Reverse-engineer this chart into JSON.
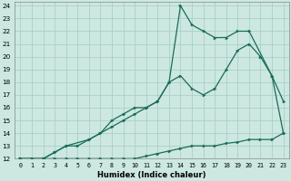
{
  "xlabel": "Humidex (Indice chaleur)",
  "background_color": "#cce8e0",
  "line_color": "#1a6b5a",
  "grid_color": "#aacfc8",
  "xlim": [
    -0.5,
    23.5
  ],
  "ylim": [
    12,
    24.3
  ],
  "xticks": [
    0,
    1,
    2,
    3,
    4,
    5,
    6,
    7,
    8,
    9,
    10,
    11,
    12,
    13,
    14,
    15,
    16,
    17,
    18,
    19,
    20,
    21,
    22,
    23
  ],
  "yticks": [
    12,
    13,
    14,
    15,
    16,
    17,
    18,
    19,
    20,
    21,
    22,
    23,
    24
  ],
  "line1_x": [
    0,
    1,
    2,
    3,
    4,
    5,
    6,
    7,
    8,
    9,
    10,
    11,
    12,
    13,
    14,
    15,
    16,
    17,
    18,
    19,
    20,
    21,
    22,
    23
  ],
  "line1_y": [
    12,
    12,
    12,
    12,
    12,
    12,
    12,
    12,
    12,
    12,
    12,
    12.2,
    12.4,
    12.6,
    12.8,
    13,
    13,
    13,
    13.2,
    13.3,
    13.5,
    13.5,
    13.5,
    14
  ],
  "line2_x": [
    0,
    2,
    3,
    4,
    5,
    6,
    7,
    8,
    9,
    10,
    11,
    12,
    13,
    14,
    15,
    16,
    17,
    18,
    19,
    20,
    21,
    22,
    23
  ],
  "line2_y": [
    12,
    12,
    12.5,
    13,
    13,
    13.5,
    14,
    14.5,
    15,
    15.5,
    16,
    16.5,
    18,
    18.5,
    17.5,
    17,
    17.5,
    19,
    20.5,
    21,
    20,
    18.5,
    16.5
  ],
  "line3_x": [
    0,
    2,
    3,
    4,
    6,
    7,
    8,
    9,
    10,
    11,
    12,
    13,
    14,
    15,
    16,
    17,
    18,
    19,
    20,
    22,
    23
  ],
  "line3_y": [
    12,
    12,
    12.5,
    13,
    13.5,
    14,
    15,
    15.5,
    16,
    16,
    16.5,
    18,
    24,
    22.5,
    22,
    21.5,
    21.5,
    22,
    22,
    18.5,
    14
  ]
}
